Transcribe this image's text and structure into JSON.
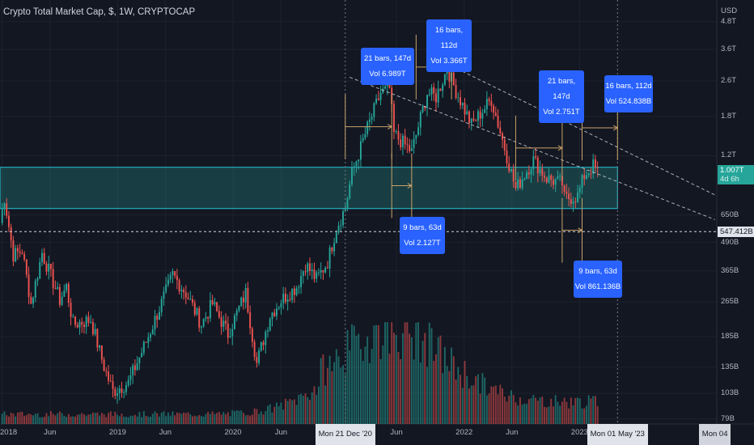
{
  "title": "Crypto Total Market Cap, $, 1W, CRYPTOCAP",
  "axis": {
    "currency": "USD",
    "price_ticks": [
      {
        "label": "4.8T",
        "v": 4800000000000.0
      },
      {
        "label": "3.6T",
        "v": 3600000000000.0
      },
      {
        "label": "2.6T",
        "v": 2600000000000.0
      },
      {
        "label": "1.8T",
        "v": 1800000000000.0
      },
      {
        "label": "1.2T",
        "v": 1200000000000.0
      },
      {
        "label": "650B",
        "v": 650000000000.0
      },
      {
        "label": "490B",
        "v": 490000000000.0
      },
      {
        "label": "365B",
        "v": 365000000000.0
      },
      {
        "label": "265B",
        "v": 265000000000.0
      },
      {
        "label": "185B",
        "v": 185000000000.0
      },
      {
        "label": "135B",
        "v": 135000000000.0
      },
      {
        "label": "103B",
        "v": 103000000000.0
      },
      {
        "label": "79B",
        "v": 79000000000.0
      }
    ],
    "time_ticks": [
      {
        "label": "2018",
        "date": "2018-01-01"
      },
      {
        "label": "Jun",
        "date": "2018-06-01"
      },
      {
        "label": "2019",
        "date": "2019-01-01"
      },
      {
        "label": "Jun",
        "date": "2019-06-01"
      },
      {
        "label": "2020",
        "date": "2020-01-01"
      },
      {
        "label": "Jun",
        "date": "2020-06-01"
      },
      {
        "label": "Jun",
        "date": "2021-06-01"
      },
      {
        "label": "2022",
        "date": "2022-01-01"
      },
      {
        "label": "Jun",
        "date": "2022-06-01"
      },
      {
        "label": "2023",
        "date": "2023-01-01"
      }
    ],
    "time_flags": [
      {
        "label": "Mon 21 Dec '20",
        "date": "2020-12-21"
      },
      {
        "label": "Mon 01 May '23",
        "date": "2023-05-01"
      },
      {
        "label": "Mon 04",
        "date": "2024-03-04"
      }
    ],
    "price_flags": [
      {
        "label": "1.007T",
        "sub": "4d 6h",
        "v": 1007000000000.0,
        "color": "#26a69a"
      },
      {
        "label": "547.412B",
        "v": 547412000000.0,
        "color": "#e1e3eb"
      }
    ]
  },
  "annotations": [
    {
      "line1": "21 bars, 147d",
      "line2": "Vol 6.989T"
    },
    {
      "line1": "16 bars, 112d",
      "line2": "Vol 3.366T"
    },
    {
      "line1": "21 bars, 147d",
      "line2": "Vol 2.751T"
    },
    {
      "line1": "16 bars, 112d",
      "line2": "Vol 524.838B"
    },
    {
      "line1": "9 bars, 63d",
      "line2": "Vol 2.127T"
    },
    {
      "line1": "9 bars, 63d",
      "line2": "Vol 861.136B"
    }
  ],
  "colors": {
    "up": "#26a69a",
    "down": "#ef5350",
    "zone": "#26a69a",
    "measure": "#c8a26a",
    "pill": "#2962ff"
  },
  "chart_data": {
    "type": "candlestick",
    "scale": "log",
    "title": "Crypto Total Market Cap, $, 1W, CRYPTOCAP",
    "ylabel": "USD",
    "ylim": [
      75000000000,
      6000000000000
    ],
    "xlim": [
      "2017-12-25",
      "2024-03-10"
    ],
    "keypoints": [
      {
        "date": "2017-12-25",
        "value": 600000000000.0
      },
      {
        "date": "2018-01-08",
        "value": 780000000000.0
      },
      {
        "date": "2018-02-05",
        "value": 430000000000.0
      },
      {
        "date": "2018-03-05",
        "value": 450000000000.0
      },
      {
        "date": "2018-04-02",
        "value": 260000000000.0
      },
      {
        "date": "2018-05-07",
        "value": 440000000000.0
      },
      {
        "date": "2018-07-02",
        "value": 270000000000.0
      },
      {
        "date": "2018-07-23",
        "value": 310000000000.0
      },
      {
        "date": "2018-08-13",
        "value": 210000000000.0
      },
      {
        "date": "2018-10-08",
        "value": 220000000000.0
      },
      {
        "date": "2018-11-19",
        "value": 135000000000.0
      },
      {
        "date": "2018-12-17",
        "value": 105000000000.0
      },
      {
        "date": "2019-02-04",
        "value": 115000000000.0
      },
      {
        "date": "2019-04-01",
        "value": 175000000000.0
      },
      {
        "date": "2019-06-24",
        "value": 350000000000.0
      },
      {
        "date": "2019-08-05",
        "value": 290000000000.0
      },
      {
        "date": "2019-09-23",
        "value": 210000000000.0
      },
      {
        "date": "2019-10-28",
        "value": 260000000000.0
      },
      {
        "date": "2019-12-16",
        "value": 190000000000.0
      },
      {
        "date": "2020-02-10",
        "value": 290000000000.0
      },
      {
        "date": "2020-03-16",
        "value": 140000000000.0
      },
      {
        "date": "2020-04-27",
        "value": 230000000000.0
      },
      {
        "date": "2020-06-01",
        "value": 270000000000.0
      },
      {
        "date": "2020-07-20",
        "value": 310000000000.0
      },
      {
        "date": "2020-08-17",
        "value": 390000000000.0
      },
      {
        "date": "2020-09-21",
        "value": 335000000000.0
      },
      {
        "date": "2020-10-26",
        "value": 400000000000.0
      },
      {
        "date": "2020-11-23",
        "value": 570000000000.0
      },
      {
        "date": "2020-12-21",
        "value": 700000000000.0
      },
      {
        "date": "2021-01-11",
        "value": 1000000000000.0
      },
      {
        "date": "2021-02-22",
        "value": 1500000000000.0
      },
      {
        "date": "2021-04-12",
        "value": 2300000000000.0
      },
      {
        "date": "2021-05-10",
        "value": 2400000000000.0
      },
      {
        "date": "2021-05-24",
        "value": 1500000000000.0
      },
      {
        "date": "2021-07-19",
        "value": 1250000000000.0
      },
      {
        "date": "2021-09-06",
        "value": 2300000000000.0
      },
      {
        "date": "2021-10-04",
        "value": 2200000000000.0
      },
      {
        "date": "2021-11-08",
        "value": 2950000000000.0
      },
      {
        "date": "2021-12-06",
        "value": 2350000000000.0
      },
      {
        "date": "2022-01-24",
        "value": 1650000000000.0
      },
      {
        "date": "2022-03-28",
        "value": 2150000000000.0
      },
      {
        "date": "2022-05-09",
        "value": 1300000000000.0
      },
      {
        "date": "2022-06-13",
        "value": 850000000000.0
      },
      {
        "date": "2022-08-08",
        "value": 1150000000000.0
      },
      {
        "date": "2022-09-19",
        "value": 950000000000.0
      },
      {
        "date": "2022-11-07",
        "value": 900000000000.0
      },
      {
        "date": "2022-11-14",
        "value": 770000000000.0
      },
      {
        "date": "2022-12-26",
        "value": 790000000000.0
      },
      {
        "date": "2023-01-16",
        "value": 980000000000.0
      },
      {
        "date": "2023-02-13",
        "value": 1080000000000.0
      },
      {
        "date": "2023-02-27",
        "value": 1007000000000.0
      }
    ],
    "zone": {
      "low": 695000000000.0,
      "high": 1065000000000.0,
      "from": "2017-12-25",
      "to": "2023-05-01"
    },
    "horizontal_line": {
      "value": 547412000000.0
    },
    "vertical_lines": [
      "2020-12-21",
      "2023-05-01"
    ],
    "trendlines": [
      {
        "from": {
          "date": "2021-01-04",
          "value": 2700000000000.0
        },
        "to": {
          "date": "2024-03-04",
          "value": 620000000000.0
        }
      },
      {
        "from": {
          "date": "2021-11-08",
          "value": 3100000000000.0
        },
        "to": {
          "date": "2024-03-04",
          "value": 800000000000.0
        }
      }
    ],
    "measurements": [
      {
        "from": "2020-12-21",
        "to": "2021-05-17",
        "value": 1620000000000.0,
        "label": "21 bars, 147d / Vol 6.989T"
      },
      {
        "from": "2021-08-02",
        "to": "2021-11-22",
        "value": 3000000000000.0,
        "label": "16 bars, 112d / Vol 3.366T"
      },
      {
        "from": "2022-06-13",
        "to": "2022-11-07",
        "value": 1300000000000.0,
        "label": "21 bars, 147d / Vol 2.751T"
      },
      {
        "from": "2023-01-09",
        "to": "2023-05-01",
        "value": 1600000000000.0,
        "label": "16 bars, 112d / Vol 524.838B"
      },
      {
        "from": "2021-05-17",
        "to": "2021-07-19",
        "value": 880000000000.0,
        "label": "9 bars, 63d / Vol 2.127T"
      },
      {
        "from": "2022-11-07",
        "to": "2023-01-09",
        "value": 555000000000.0,
        "label": "9 bars, 63d / Vol 861.136B"
      }
    ],
    "volume": {
      "peak_date": "2021-05-17",
      "ylim_share": 0.24
    }
  }
}
